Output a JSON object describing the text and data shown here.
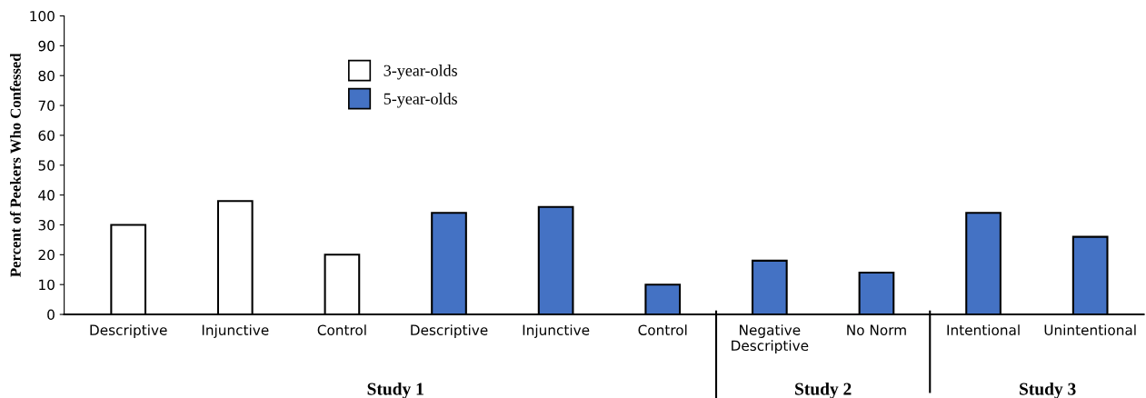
{
  "chart_data": {
    "type": "bar",
    "ylabel": "Percent of Peekers Who Confessed",
    "categories": [
      "Descriptive",
      "Injunctive",
      "Control",
      "Descriptive",
      "Injunctive",
      "Control",
      "Negative\nDescriptive",
      "No Norm",
      "Intentional",
      "Unintentional"
    ],
    "series": [
      {
        "name": "3-year-olds",
        "color": "#ffffff",
        "values": [
          30,
          38,
          20,
          null,
          null,
          null,
          null,
          null,
          null,
          null
        ]
      },
      {
        "name": "5-year-olds",
        "color": "#4472c4",
        "values": [
          null,
          null,
          null,
          34,
          36,
          10,
          18,
          14,
          34,
          26
        ]
      }
    ],
    "ylim": [
      0,
      100
    ],
    "yticks": [
      0,
      10,
      20,
      30,
      40,
      50,
      60,
      70,
      80,
      90,
      100
    ],
    "annotations": [
      "Study 1",
      "Study 2",
      "Study 3"
    ],
    "legend": "top left",
    "grid": false
  }
}
